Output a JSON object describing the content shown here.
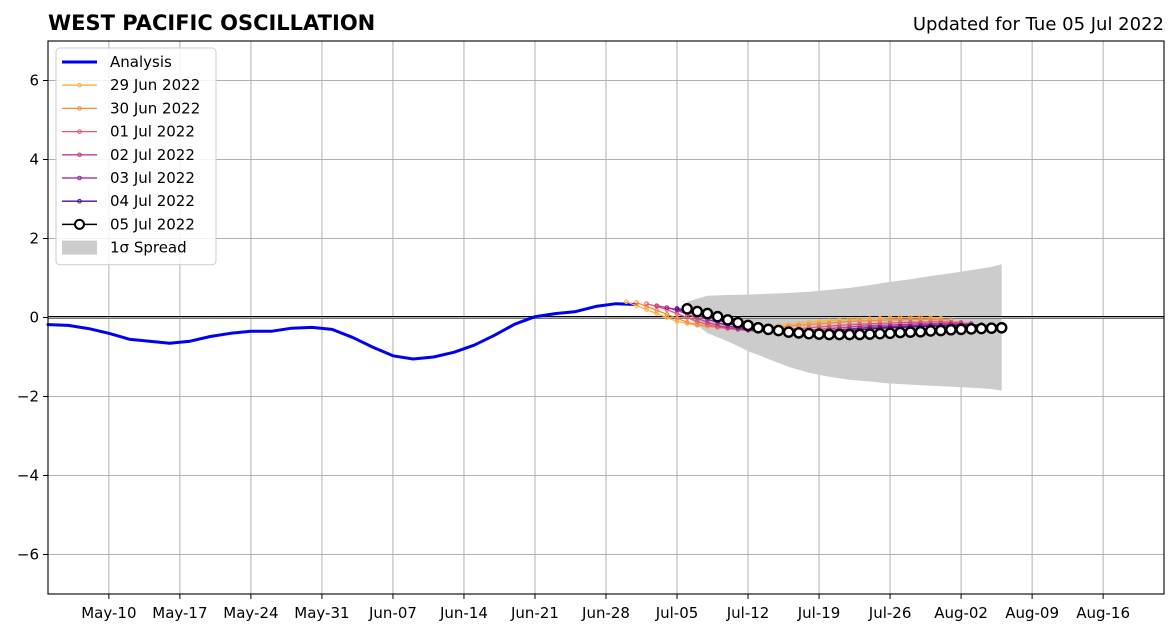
{
  "chart_data": {
    "type": "line",
    "title": "WEST PACIFIC OSCILLATION",
    "subtitle": "Updated for Tue 05 Jul 2022",
    "xlabel": "",
    "ylabel": "",
    "year": 2022,
    "xlim": [
      "2022-05-04",
      "2022-08-22"
    ],
    "ylim": [
      -7,
      7
    ],
    "yticks": [
      -6,
      -4,
      -2,
      0,
      2,
      4,
      6
    ],
    "ytick_labels": [
      "−6",
      "−4",
      "−2",
      "0",
      "2",
      "4",
      "6"
    ],
    "xticks": [
      "2022-05-10",
      "2022-05-17",
      "2022-05-24",
      "2022-05-31",
      "2022-06-07",
      "2022-06-14",
      "2022-06-21",
      "2022-06-28",
      "2022-07-05",
      "2022-07-12",
      "2022-07-19",
      "2022-07-26",
      "2022-08-02",
      "2022-08-09",
      "2022-08-16"
    ],
    "xtick_labels": [
      "May-10",
      "May-17",
      "May-24",
      "May-31",
      "Jun-07",
      "Jun-14",
      "Jun-21",
      "Jun-28",
      "Jul-05",
      "Jul-12",
      "Jul-19",
      "Jul-26",
      "Aug-02",
      "Aug-09",
      "Aug-16"
    ],
    "grid": true,
    "zero_line": true,
    "legend_position": "top-left",
    "analysis": {
      "name": "Analysis",
      "color": "#0000ee",
      "points": [
        [
          "2022-05-04",
          -0.18
        ],
        [
          "2022-05-06",
          -0.2
        ],
        [
          "2022-05-08",
          -0.28
        ],
        [
          "2022-05-10",
          -0.4
        ],
        [
          "2022-05-12",
          -0.55
        ],
        [
          "2022-05-14",
          -0.6
        ],
        [
          "2022-05-16",
          -0.65
        ],
        [
          "2022-05-18",
          -0.6
        ],
        [
          "2022-05-20",
          -0.48
        ],
        [
          "2022-05-22",
          -0.4
        ],
        [
          "2022-05-24",
          -0.35
        ],
        [
          "2022-05-26",
          -0.35
        ],
        [
          "2022-05-28",
          -0.27
        ],
        [
          "2022-05-30",
          -0.25
        ],
        [
          "2022-06-01",
          -0.3
        ],
        [
          "2022-06-03",
          -0.5
        ],
        [
          "2022-06-05",
          -0.75
        ],
        [
          "2022-06-07",
          -0.97
        ],
        [
          "2022-06-09",
          -1.05
        ],
        [
          "2022-06-11",
          -1.0
        ],
        [
          "2022-06-13",
          -0.88
        ],
        [
          "2022-06-15",
          -0.7
        ],
        [
          "2022-06-17",
          -0.45
        ],
        [
          "2022-06-19",
          -0.17
        ],
        [
          "2022-06-21",
          0.02
        ],
        [
          "2022-06-23",
          0.1
        ],
        [
          "2022-06-25",
          0.15
        ],
        [
          "2022-06-27",
          0.28
        ],
        [
          "2022-06-29",
          0.35
        ],
        [
          "2022-07-01",
          0.33
        ]
      ]
    },
    "forecasts": [
      {
        "name": "29 Jun 2022",
        "color": "#fbb33a",
        "start": "2022-06-30",
        "values": [
          0.4,
          0.3,
          0.2,
          0.1,
          0.0,
          -0.1,
          -0.15,
          -0.2,
          -0.22,
          -0.25,
          -0.25,
          -0.27,
          -0.28,
          -0.25,
          -0.22,
          -0.2,
          -0.18,
          -0.15,
          -0.12,
          -0.1,
          -0.08,
          -0.06,
          -0.05,
          -0.04,
          -0.03,
          -0.02,
          -0.01,
          0.0,
          0.0,
          0.0,
          -0.01,
          -0.02
        ]
      },
      {
        "name": "30 Jun 2022",
        "color": "#f78a42",
        "start": "2022-07-01",
        "values": [
          0.38,
          0.28,
          0.18,
          0.08,
          -0.02,
          -0.12,
          -0.18,
          -0.22,
          -0.25,
          -0.27,
          -0.28,
          -0.3,
          -0.3,
          -0.28,
          -0.25,
          -0.22,
          -0.2,
          -0.18,
          -0.16,
          -0.14,
          -0.12,
          -0.1,
          -0.09,
          -0.08,
          -0.07,
          -0.06,
          -0.06,
          -0.05,
          -0.05,
          -0.05,
          -0.06,
          -0.06
        ]
      },
      {
        "name": "01 Jul 2022",
        "color": "#e15a6c",
        "start": "2022-07-02",
        "values": [
          0.35,
          0.28,
          0.2,
          0.1,
          0.0,
          -0.1,
          -0.18,
          -0.24,
          -0.28,
          -0.3,
          -0.32,
          -0.33,
          -0.34,
          -0.33,
          -0.3,
          -0.28,
          -0.26,
          -0.24,
          -0.22,
          -0.2,
          -0.18,
          -0.17,
          -0.16,
          -0.15,
          -0.14,
          -0.13,
          -0.12,
          -0.12,
          -0.11,
          -0.11,
          -0.12,
          -0.12
        ]
      },
      {
        "name": "02 Jul 2022",
        "color": "#c13b8a",
        "start": "2022-07-03",
        "values": [
          0.3,
          0.25,
          0.18,
          0.08,
          -0.02,
          -0.12,
          -0.2,
          -0.26,
          -0.3,
          -0.33,
          -0.35,
          -0.36,
          -0.37,
          -0.36,
          -0.34,
          -0.32,
          -0.3,
          -0.28,
          -0.26,
          -0.24,
          -0.22,
          -0.21,
          -0.2,
          -0.19,
          -0.18,
          -0.17,
          -0.16,
          -0.16,
          -0.15,
          -0.15,
          -0.15,
          -0.15
        ]
      },
      {
        "name": "03 Jul 2022",
        "color": "#8e1e9a",
        "start": "2022-07-04",
        "values": [
          0.25,
          0.2,
          0.14,
          0.06,
          -0.04,
          -0.13,
          -0.21,
          -0.27,
          -0.31,
          -0.34,
          -0.36,
          -0.38,
          -0.39,
          -0.38,
          -0.37,
          -0.35,
          -0.33,
          -0.31,
          -0.29,
          -0.27,
          -0.25,
          -0.24,
          -0.23,
          -0.22,
          -0.21,
          -0.2,
          -0.19,
          -0.19,
          -0.18,
          -0.18,
          -0.18,
          -0.18
        ]
      },
      {
        "name": "04 Jul 2022",
        "color": "#4d0f8a",
        "start": "2022-07-05",
        "values": [
          0.23,
          0.18,
          0.12,
          0.04,
          -0.05,
          -0.14,
          -0.22,
          -0.28,
          -0.33,
          -0.36,
          -0.38,
          -0.39,
          -0.4,
          -0.4,
          -0.39,
          -0.37,
          -0.35,
          -0.33,
          -0.31,
          -0.29,
          -0.27,
          -0.26,
          -0.25,
          -0.24,
          -0.23,
          -0.22,
          -0.21,
          -0.21,
          -0.2,
          -0.2,
          -0.2,
          -0.2
        ]
      },
      {
        "name": "05 Jul 2022",
        "color": "#000000",
        "marker": "circle",
        "start": "2022-07-06",
        "values": [
          0.22,
          0.15,
          0.1,
          0.02,
          -0.06,
          -0.13,
          -0.2,
          -0.26,
          -0.3,
          -0.33,
          -0.37,
          -0.39,
          -0.41,
          -0.42,
          -0.43,
          -0.43,
          -0.43,
          -0.43,
          -0.42,
          -0.41,
          -0.4,
          -0.38,
          -0.37,
          -0.36,
          -0.34,
          -0.33,
          -0.31,
          -0.3,
          -0.29,
          -0.28,
          -0.27,
          -0.26
        ]
      }
    ],
    "spread": {
      "name": "1σ Spread",
      "color": "#cccccc",
      "points": [
        [
          "2022-07-06",
          0.4,
          0.0
        ],
        [
          "2022-07-08",
          0.55,
          -0.4
        ],
        [
          "2022-07-10",
          0.57,
          -0.6
        ],
        [
          "2022-07-12",
          0.58,
          -0.85
        ],
        [
          "2022-07-14",
          0.6,
          -1.05
        ],
        [
          "2022-07-16",
          0.62,
          -1.25
        ],
        [
          "2022-07-18",
          0.65,
          -1.4
        ],
        [
          "2022-07-20",
          0.7,
          -1.5
        ],
        [
          "2022-07-22",
          0.75,
          -1.58
        ],
        [
          "2022-07-24",
          0.82,
          -1.62
        ],
        [
          "2022-07-26",
          0.9,
          -1.67
        ],
        [
          "2022-07-28",
          0.97,
          -1.7
        ],
        [
          "2022-07-30",
          1.05,
          -1.73
        ],
        [
          "2022-08-01",
          1.12,
          -1.75
        ],
        [
          "2022-08-03",
          1.2,
          -1.78
        ],
        [
          "2022-08-05",
          1.28,
          -1.81
        ],
        [
          "2022-08-06",
          1.35,
          -1.85
        ]
      ]
    }
  }
}
